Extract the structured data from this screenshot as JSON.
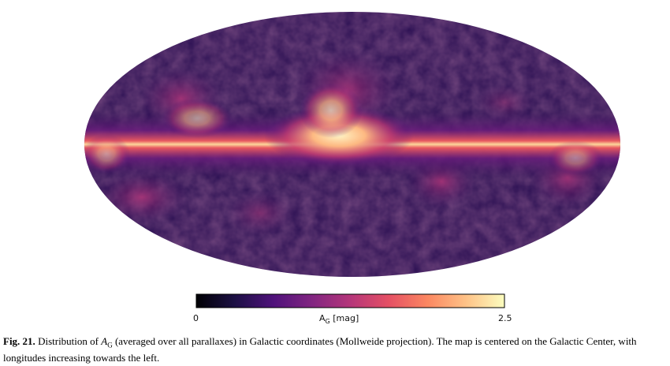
{
  "colorbar": {
    "min_label": "0",
    "max_label": "2.5",
    "label_main": "A",
    "label_sub": "G",
    "label_unit": " [mag]",
    "colormap": [
      "#000004",
      "#1c1044",
      "#4f127b",
      "#812581",
      "#b5367a",
      "#e55064",
      "#fb8761",
      "#fec287",
      "#fcfdbf"
    ]
  },
  "caption": {
    "fig_label": "Fig. 21.",
    "text_before": " Distribution of ",
    "symbol_main": "A",
    "symbol_sub": "G",
    "text_after": " (averaged over all parallaxes) in Galactic coordinates (Mollweide projection). The map is centered on the Galactic Center, with longitudes increasing towards the left."
  },
  "map": {
    "projection": "Mollweide",
    "background_color": "#2a0f52",
    "band_color_core": "#fde0a0",
    "band_color_mid": "#f06a5e",
    "band_color_outer": "#7a1f7e"
  }
}
